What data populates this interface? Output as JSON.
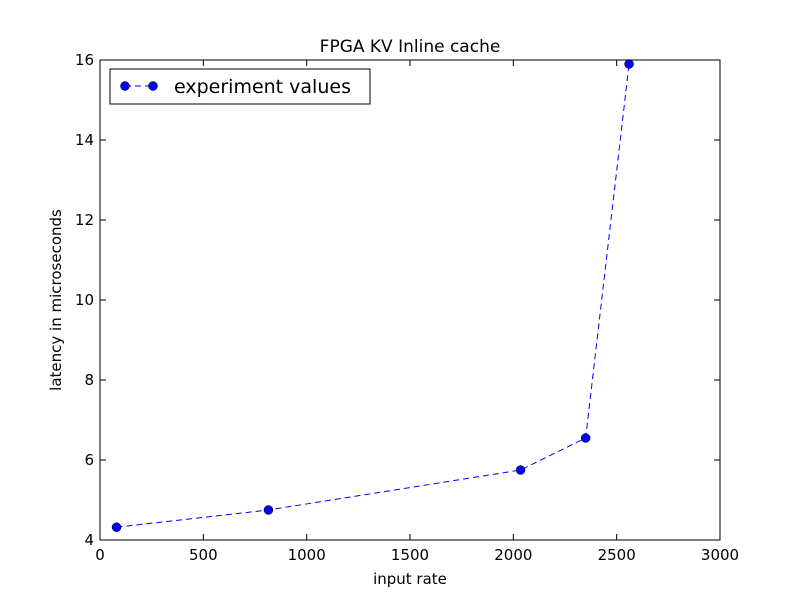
{
  "chart_data": {
    "type": "line",
    "title": "FPGA KV Inline cache",
    "xlabel": "input rate",
    "ylabel": "latency in microseconds",
    "xlim": [
      0,
      3000
    ],
    "ylim": [
      4,
      16
    ],
    "xticks": [
      0,
      500,
      1000,
      1500,
      2000,
      2500,
      3000
    ],
    "yticks": [
      4,
      6,
      8,
      10,
      12,
      14,
      16
    ],
    "grid": false,
    "legend_position": "upper-left",
    "series": [
      {
        "name": "experiment values",
        "color": "#0000ff",
        "line_style": "dashed",
        "marker": "circle",
        "x": [
          80,
          815,
          2035,
          2350,
          2560
        ],
        "y": [
          4.32,
          4.75,
          5.75,
          6.55,
          15.9
        ]
      }
    ]
  }
}
